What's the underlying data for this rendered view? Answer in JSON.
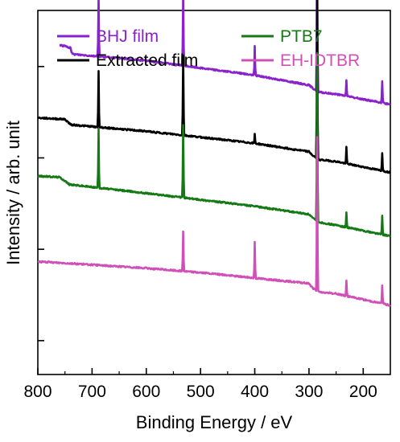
{
  "chart_data": {
    "type": "line",
    "xlabel": "Binding Energy / eV",
    "ylabel": "Intensity / arb. unit",
    "xlim": [
      800,
      150
    ],
    "x_reversed": true,
    "x_ticks": [
      800,
      700,
      600,
      500,
      400,
      300,
      200
    ],
    "y_ticks_shown": false,
    "legend_position": "top",
    "series": [
      {
        "name": "BHJ film",
        "color": "#8a22cc",
        "baseline_points": [
          [
            760,
            0.905
          ],
          [
            750,
            0.902
          ],
          [
            740,
            0.897
          ],
          [
            738,
            0.885
          ],
          [
            735,
            0.88
          ],
          [
            600,
            0.862
          ],
          [
            500,
            0.842
          ],
          [
            400,
            0.822
          ],
          [
            300,
            0.795
          ],
          [
            292,
            0.785
          ],
          [
            280,
            0.775
          ],
          [
            250,
            0.77
          ],
          [
            150,
            0.742
          ]
        ],
        "peaks": [
          [
            688,
            0.165
          ],
          [
            532,
            0.195
          ],
          [
            400,
            0.08
          ],
          [
            285,
            0.44
          ],
          [
            231,
            0.045
          ],
          [
            165,
            0.06
          ]
        ]
      },
      {
        "name": "Extracted film",
        "color": "#000000",
        "baseline_points": [
          [
            800,
            0.705
          ],
          [
            750,
            0.701
          ],
          [
            742,
            0.69
          ],
          [
            738,
            0.686
          ],
          [
            600,
            0.668
          ],
          [
            500,
            0.652
          ],
          [
            400,
            0.635
          ],
          [
            300,
            0.612
          ],
          [
            292,
            0.6
          ],
          [
            280,
            0.59
          ],
          [
            250,
            0.585
          ],
          [
            150,
            0.555
          ]
        ],
        "peaks": [
          [
            688,
            0.155
          ],
          [
            532,
            0.22
          ],
          [
            400,
            0.025
          ],
          [
            285,
            0.44
          ],
          [
            231,
            0.045
          ],
          [
            165,
            0.05
          ]
        ]
      },
      {
        "name": "PTB7",
        "color": "#157a15",
        "baseline_points": [
          [
            800,
            0.545
          ],
          [
            760,
            0.542
          ],
          [
            750,
            0.532
          ],
          [
            742,
            0.522
          ],
          [
            600,
            0.498
          ],
          [
            500,
            0.48
          ],
          [
            400,
            0.462
          ],
          [
            300,
            0.44
          ],
          [
            292,
            0.428
          ],
          [
            280,
            0.418
          ],
          [
            250,
            0.41
          ],
          [
            150,
            0.38
          ]
        ],
        "peaks": [
          [
            688,
            0.16
          ],
          [
            532,
            0.2
          ],
          [
            285,
            0.46
          ],
          [
            231,
            0.04
          ],
          [
            165,
            0.05
          ]
        ]
      },
      {
        "name": "EH-IDTBR",
        "color": "#d050b8",
        "baseline_points": [
          [
            800,
            0.31
          ],
          [
            750,
            0.306
          ],
          [
            600,
            0.292
          ],
          [
            500,
            0.28
          ],
          [
            400,
            0.265
          ],
          [
            300,
            0.25
          ],
          [
            292,
            0.236
          ],
          [
            280,
            0.226
          ],
          [
            250,
            0.222
          ],
          [
            150,
            0.19
          ]
        ],
        "peaks": [
          [
            532,
            0.11
          ],
          [
            400,
            0.1
          ],
          [
            285,
            0.42
          ],
          [
            231,
            0.04
          ],
          [
            165,
            0.05
          ]
        ]
      }
    ]
  }
}
